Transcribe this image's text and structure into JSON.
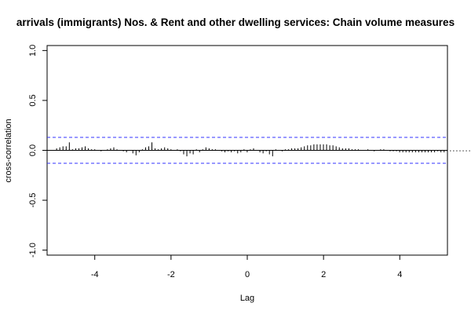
{
  "chart_data": {
    "type": "bar",
    "title": "arrivals (immigrants) Nos. & Rent and other dwelling services: Chain volume measures",
    "xlabel": "Lag",
    "ylabel": "cross-correlation",
    "xlim": [
      -5.25,
      5.25
    ],
    "ylim": [
      -1.05,
      1.05
    ],
    "x_ticks": [
      "-4",
      "-2",
      "0",
      "2",
      "4"
    ],
    "x_tick_values": [
      -4,
      -2,
      0,
      2,
      4
    ],
    "y_ticks": [
      "-1.0",
      "-0.5",
      "0.0",
      "0.5",
      "1.0"
    ],
    "y_tick_values": [
      -1.0,
      -0.5,
      0.0,
      0.5,
      1.0
    ],
    "confidence_limit": 0.13,
    "lag_step": 0.0833,
    "lag_start": -5.0,
    "colors": {
      "ci_line": "#3333ff",
      "bars": "#000000",
      "axes": "#000000"
    },
    "values": [
      0.02,
      0.03,
      0.04,
      0.04,
      0.08,
      0.01,
      0.02,
      0.02,
      0.03,
      0.04,
      0.02,
      0.01,
      0.01,
      0.0,
      -0.01,
      0.0,
      0.01,
      0.02,
      0.03,
      0.01,
      0.0,
      -0.01,
      -0.02,
      0.0,
      -0.03,
      -0.05,
      -0.02,
      0.01,
      0.03,
      0.04,
      0.08,
      0.02,
      0.01,
      0.02,
      0.03,
      0.02,
      0.01,
      0.0,
      0.01,
      -0.01,
      -0.04,
      -0.06,
      -0.03,
      -0.04,
      0.01,
      -0.02,
      0.01,
      0.03,
      0.02,
      0.01,
      0.01,
      0.0,
      -0.01,
      -0.02,
      -0.01,
      -0.02,
      -0.01,
      -0.03,
      -0.02,
      0.01,
      -0.02,
      0.01,
      0.02,
      0.0,
      -0.02,
      -0.03,
      -0.01,
      -0.04,
      -0.06,
      0.01,
      0.0,
      -0.01,
      0.01,
      0.01,
      0.02,
      0.02,
      0.02,
      0.03,
      0.04,
      0.05,
      0.05,
      0.06,
      0.06,
      0.06,
      0.06,
      0.06,
      0.05,
      0.05,
      0.04,
      0.03,
      0.02,
      0.02,
      0.02,
      0.01,
      0.01,
      0.01,
      0.0,
      0.0,
      0.01,
      0.0,
      -0.01,
      0.0,
      0.01,
      0.01,
      0.0,
      -0.01,
      -0.01,
      -0.01,
      -0.02,
      -0.02,
      -0.02,
      -0.02,
      -0.02,
      -0.02,
      -0.02,
      -0.02,
      -0.02,
      -0.02,
      -0.02,
      -0.02,
      -0.01,
      -0.02,
      -0.02,
      -0.01,
      -0.01,
      -0.01,
      -0.01,
      -0.01,
      -0.01,
      -0.01,
      -0.01,
      0.0,
      0.0,
      0.0,
      0.0,
      0.0,
      0.01,
      0.01,
      0.01,
      0.01,
      0.01,
      0.0,
      0.0,
      0.0,
      0.0,
      0.0,
      0.0,
      0.0,
      0.0,
      0.0,
      0.0,
      0.0,
      0.0,
      0.0,
      0.0,
      0.0,
      0.0,
      0.0,
      0.0,
      0.0,
      0.0,
      0.0,
      0.0,
      0.0,
      0.0,
      0.0,
      0.0,
      0.0,
      0.0,
      0.0,
      0.0,
      0.0,
      0.0,
      0.0
    ]
  }
}
